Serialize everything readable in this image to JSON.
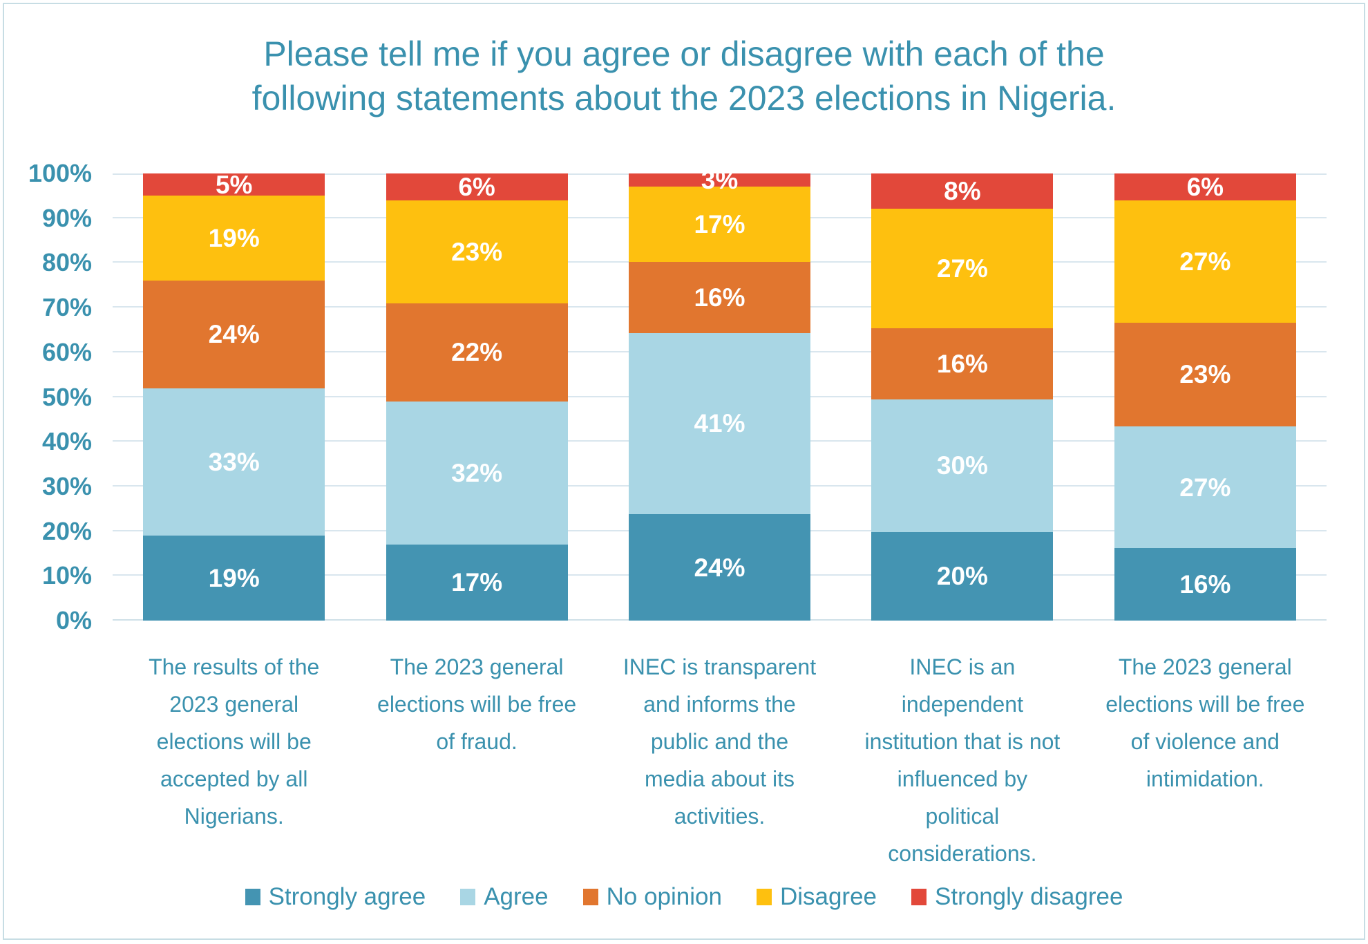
{
  "title": "Please tell me if you agree or disagree with each of the\nfollowing statements about the 2023 elections in Nigeria.",
  "colors": {
    "text_teal": "#3a91ae",
    "gridline": "#d9e6ee",
    "axis_line": "#cfe0e8",
    "frame_border": "#c7dde4",
    "data_label": "#ffffff",
    "background": "#ffffff"
  },
  "chart_data": {
    "type": "bar",
    "stacked": true,
    "title": "Please tell me if you agree or disagree with each of the following statements about the 2023 elections in Nigeria.",
    "xlabel": "",
    "ylabel": "",
    "ylim": [
      0,
      100
    ],
    "grid": true,
    "legend_position": "bottom",
    "value_suffix": "%",
    "y_ticks_bottom_up": [
      "0%",
      "10%",
      "20%",
      "30%",
      "40%",
      "50%",
      "60%",
      "70%",
      "80%",
      "90%",
      "100%"
    ],
    "categories": [
      "The results of the\n2023 general\nelections will be\naccepted by all\nNigerians.",
      "The 2023 general\nelections will be free\nof fraud.",
      "INEC is transparent\nand informs the\npublic and the\nmedia about its\nactivities.",
      "INEC is an\nindependent\ninstitution that is not\ninfluenced by\npolitical\nconsiderations.",
      "The 2023 general\nelections will be free\nof violence and\nintimidation."
    ],
    "series": [
      {
        "name": "Strongly agree",
        "color": "#4494b2",
        "values": [
          19,
          17,
          24,
          20,
          16
        ]
      },
      {
        "name": "Agree",
        "color": "#a9d6e4",
        "values": [
          33,
          32,
          41,
          30,
          27
        ]
      },
      {
        "name": "No opinion",
        "color": "#e1762f",
        "values": [
          24,
          22,
          16,
          16,
          23
        ]
      },
      {
        "name": "Disagree",
        "color": "#fec00f",
        "values": [
          19,
          23,
          17,
          27,
          27
        ]
      },
      {
        "name": "Strongly disagree",
        "color": "#e2483a",
        "values": [
          5,
          6,
          3,
          8,
          6
        ]
      }
    ]
  }
}
